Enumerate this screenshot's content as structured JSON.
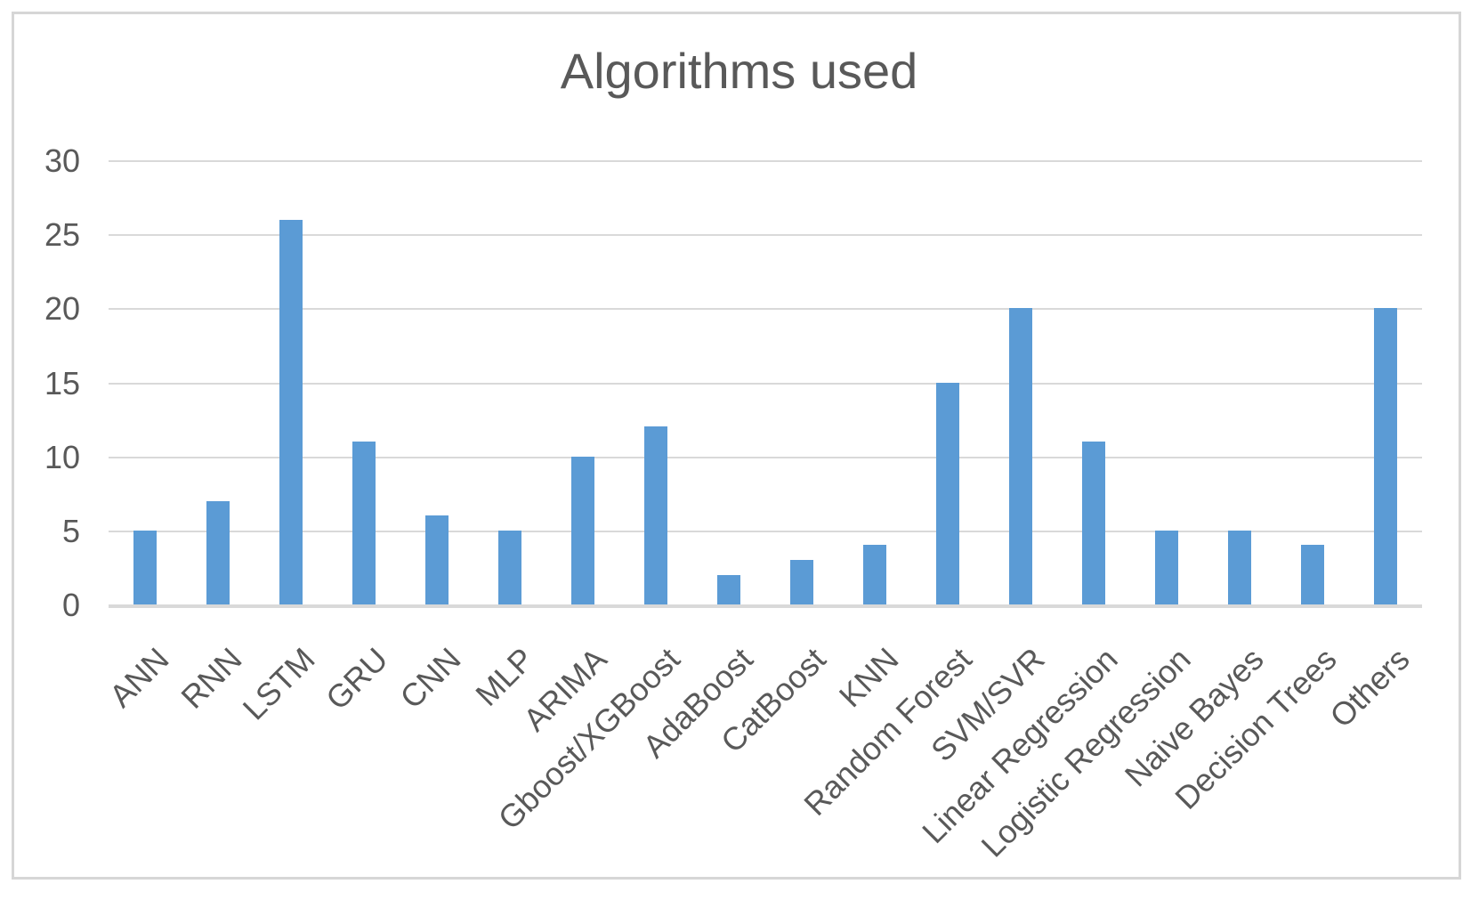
{
  "chart_data": {
    "type": "bar",
    "title": "Algorithms used",
    "categories": [
      "ANN",
      "RNN",
      "LSTM",
      "GRU",
      "CNN",
      "MLP",
      "ARIMA",
      "Gboost/XGBoost",
      "AdaBoost",
      "CatBoost",
      "KNN",
      "Random Forest",
      "SVM/SVR",
      "Linear Regression",
      "Logistic Regression",
      "Naive Bayes",
      "Decision Trees",
      "Others"
    ],
    "values": [
      5,
      7,
      26,
      11,
      6,
      5,
      10,
      12,
      2,
      3,
      4,
      15,
      20,
      11,
      5,
      5,
      4,
      20
    ],
    "xlabel": "",
    "ylabel": "",
    "ylim": [
      0,
      30
    ],
    "yticks": [
      0,
      5,
      10,
      15,
      20,
      25,
      30
    ],
    "grid": true,
    "legend_position": "none",
    "x_tick_rotation_deg": 45,
    "colors": {
      "bar": "#5b9bd5",
      "gridline": "#d9d9d9",
      "axis_line": "#d9d9d9",
      "tick_label": "#595959",
      "title": "#595959",
      "chart_border": "#d6d6d6",
      "background": "#ffffff"
    }
  }
}
